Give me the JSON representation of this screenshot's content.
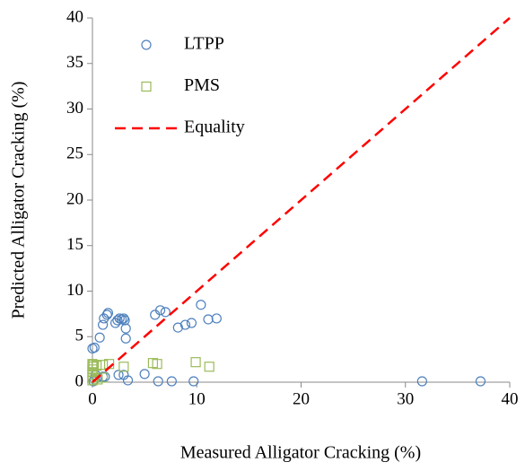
{
  "chart_data": {
    "type": "scatter",
    "xlabel": "Measured Alligator Cracking (%)",
    "ylabel": "Predicted Alligator Cracking (%)",
    "xlim": [
      0,
      40
    ],
    "xticks": [
      0,
      10,
      20,
      30,
      40
    ],
    "ylim": [
      0,
      40
    ],
    "yticks": [
      0,
      5,
      10,
      15,
      20,
      25,
      30,
      35,
      40
    ],
    "grid": false,
    "legend": "upper left",
    "series": [
      {
        "name": "LTPP",
        "color": "#4f81bd",
        "marker": "circle",
        "x": [
          0,
          0.2,
          0.7,
          1.0,
          1.1,
          1.4,
          1.5,
          2.2,
          2.4,
          2.6,
          2.8,
          3.0,
          3.1,
          3.2,
          3.2,
          2.5,
          3.0,
          3.4,
          1.0,
          1.2,
          0.2,
          0.5,
          5.0,
          6.3,
          7.6,
          9.7,
          6.0,
          6.5,
          7.0,
          8.2,
          8.9,
          9.5,
          10.4,
          11.1,
          11.9,
          31.6,
          37.2,
          0.1,
          0.3
        ],
        "values": [
          3.7,
          3.8,
          4.9,
          6.3,
          7.0,
          7.4,
          7.6,
          6.5,
          6.8,
          7.0,
          6.9,
          7.0,
          6.8,
          5.9,
          4.8,
          0.8,
          0.8,
          0.2,
          0.6,
          0.6,
          0.3,
          0.5,
          0.9,
          0.1,
          0.1,
          0.1,
          7.4,
          7.9,
          7.7,
          6.0,
          6.3,
          6.5,
          8.5,
          6.9,
          7.0,
          0.1,
          0.1,
          0.1,
          0.8
        ]
      },
      {
        "name": "PMS",
        "color": "#9bbb59",
        "marker": "square",
        "x": [
          0,
          0,
          0,
          0,
          0,
          0,
          0,
          0.1,
          0.4,
          1.0,
          1.6,
          3.0,
          5.8,
          6.2,
          9.9,
          11.2,
          0.5,
          1.0
        ],
        "values": [
          0.2,
          0.5,
          0.8,
          1.1,
          1.4,
          1.7,
          2.0,
          1.9,
          1.8,
          1.9,
          2.0,
          1.7,
          2.1,
          2.0,
          2.2,
          1.7,
          0.3,
          0.5
        ]
      },
      {
        "name": "Equality",
        "color": "#ff0000",
        "marker": "dashed-line",
        "x": [
          0,
          40
        ],
        "values": [
          0,
          40
        ]
      }
    ]
  }
}
